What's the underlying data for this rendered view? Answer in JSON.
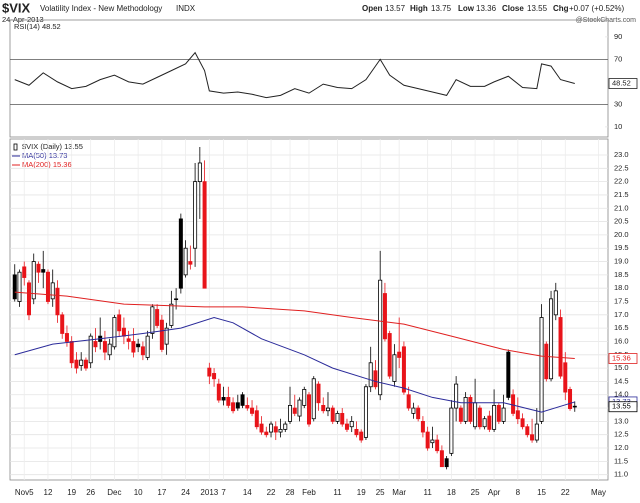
{
  "header": {
    "symbol": "$VIX",
    "name": "Volatility Index - New Methodology",
    "exchange": "INDX",
    "date": "24-Apr-2013",
    "open_label": "Open",
    "high_label": "High",
    "low_label": "Low",
    "close_label": "Close",
    "change_label": "Chg",
    "change": "+0.07 (+0.52%)",
    "watermark": "@StockCharts.com"
  },
  "chart_data": [
    {
      "type": "line",
      "xlim": [
        -1,
        125
      ],
      "ylim": [
        1,
        105
      ],
      "yticks": [
        10,
        30,
        70,
        90
      ],
      "levels": [
        30,
        70
      ],
      "grid": false,
      "series": [
        {
          "name": "RSI(14)",
          "color": "#222222",
          "x": [
            0,
            3,
            6,
            9,
            12,
            15,
            18,
            21,
            24,
            27,
            30,
            33,
            36,
            38,
            40,
            41,
            44,
            47,
            50,
            53,
            56,
            59,
            62,
            65,
            68,
            71,
            74,
            77,
            79,
            82,
            85,
            88,
            91,
            93,
            96,
            99,
            101,
            104,
            107,
            110,
            111,
            113,
            115,
            118
          ],
          "values": [
            52,
            47,
            58,
            50,
            44,
            46,
            52,
            56,
            50,
            48,
            54,
            60,
            66,
            76,
            60,
            42,
            40,
            41,
            39,
            36,
            38,
            44,
            40,
            48,
            45,
            44,
            52,
            70,
            56,
            47,
            44,
            41,
            38,
            52,
            46,
            46,
            50,
            55,
            45,
            44,
            66,
            64,
            52,
            48.52
          ]
        }
      ]
    },
    {
      "type": "candlestick",
      "name": "$VIX (Daily)",
      "up_color": "#000000",
      "down_color": "#e8141a",
      "grid": true,
      "xlim": [
        -1,
        125
      ],
      "ylim": [
        10.8,
        23.6
      ],
      "yticks": [
        {
          "value": 11,
          "label": "11.0"
        },
        11.5,
        {
          "value": 12,
          "label": "12.0"
        },
        12.5,
        {
          "value": 13,
          "label": "13.0"
        },
        13.5,
        {
          "value": 14,
          "label": "14.0"
        },
        14.5,
        {
          "value": 15,
          "label": "15.0"
        },
        15.5,
        {
          "value": 16,
          "label": "16.0"
        },
        16.5,
        {
          "value": 17,
          "label": "17.0"
        },
        17.5,
        {
          "value": 18,
          "label": "18.0"
        },
        18.5,
        {
          "value": 19,
          "label": "19.0"
        },
        19.5,
        {
          "value": 20,
          "label": "20.0"
        },
        20.5,
        {
          "value": 21,
          "label": "21.0"
        },
        21.5,
        {
          "value": 22,
          "label": "22.0"
        },
        22.5,
        {
          "value": 23,
          "label": "23.0"
        }
      ],
      "xticks": [
        {
          "value": 2,
          "label": "Nov5"
        },
        {
          "value": 7,
          "label": "12"
        },
        {
          "value": 12,
          "label": "19"
        },
        {
          "value": 16,
          "label": "26"
        },
        {
          "value": 21,
          "label": "Dec"
        },
        {
          "value": 26,
          "label": "10"
        },
        {
          "value": 31,
          "label": "17"
        },
        {
          "value": 36,
          "label": "24"
        },
        {
          "value": 41,
          "label": "2013"
        },
        {
          "value": 44,
          "label": "7"
        },
        {
          "value": 49,
          "label": "14"
        },
        {
          "value": 54,
          "label": "22"
        },
        {
          "value": 58,
          "label": "28"
        },
        {
          "value": 62,
          "label": "Feb"
        },
        {
          "value": 68,
          "label": "11"
        },
        {
          "value": 73,
          "label": "19"
        },
        {
          "value": 77,
          "label": "25"
        },
        {
          "value": 81,
          "label": "Mar"
        },
        {
          "value": 87,
          "label": "11"
        },
        {
          "value": 92,
          "label": "18"
        },
        {
          "value": 97,
          "label": "25"
        },
        {
          "value": 101,
          "label": "Apr"
        },
        {
          "value": 106,
          "label": "8"
        },
        {
          "value": 111,
          "label": "15"
        },
        {
          "value": 116,
          "label": "22"
        },
        {
          "value": 123,
          "label": "May"
        }
      ],
      "open": [
        18.5,
        17.5,
        18.8,
        18.2,
        17.6,
        18.9,
        18.7,
        18.6,
        17.6,
        18.0,
        17.0,
        16.3,
        16.0,
        15.3,
        15.1,
        15.3,
        15.2,
        16.0,
        16.2,
        16.0,
        15.5,
        15.8,
        17.0,
        16.5,
        16.1,
        16.0,
        15.9,
        15.8,
        15.4,
        16.3,
        17.2,
        16.8,
        15.9,
        16.6,
        17.6,
        20.6,
        18.5,
        19.0,
        19.5,
        22.0,
        22.0,
        15.0,
        14.8,
        14.4,
        13.9,
        13.9,
        13.7,
        13.7,
        14.0,
        13.6,
        13.5,
        13.4,
        12.9,
        12.6,
        12.6,
        12.8,
        12.6,
        12.7,
        13.0,
        13.5,
        13.2,
        13.6,
        14.0,
        13.1,
        14.4,
        13.6,
        13.4,
        13.5,
        13.0,
        13.3,
        12.9,
        12.8,
        12.7,
        12.6,
        12.4,
        14.3,
        14.9,
        14.0,
        17.8,
        16.3,
        14.5,
        15.6,
        15.8,
        14.0,
        13.3,
        13.5,
        13.0,
        12.6,
        12.2,
        12.3,
        11.9,
        11.6,
        11.8,
        13.5,
        13.5,
        13.0,
        13.9,
        12.8,
        13.5,
        12.8,
        13.2,
        12.7,
        13.6,
        13.0,
        15.6,
        14.0,
        13.4,
        13.1,
        12.8,
        12.5,
        12.3,
        13.0,
        15.9,
        14.6,
        17.0,
        16.9,
        15.2,
        14.2,
        13.57
      ],
      "high": [
        18.9,
        18.7,
        19.0,
        18.3,
        19.3,
        19.0,
        19.4,
        18.7,
        18.7,
        18.3,
        17.1,
        16.6,
        16.2,
        15.6,
        15.6,
        15.4,
        16.3,
        16.5,
        16.9,
        16.4,
        16.1,
        17.0,
        17.2,
        16.9,
        16.4,
        16.5,
        16.1,
        16.0,
        16.4,
        17.4,
        17.4,
        17.0,
        16.7,
        17.9,
        18.0,
        20.8,
        19.8,
        19.6,
        22.7,
        23.3,
        22.8,
        15.2,
        15.0,
        14.6,
        14.3,
        14.3,
        13.9,
        14.0,
        14.1,
        13.9,
        13.8,
        13.6,
        13.2,
        12.8,
        13.0,
        13.0,
        13.1,
        13.0,
        14.3,
        14.0,
        13.9,
        14.3,
        14.1,
        14.7,
        14.5,
        13.9,
        14.1,
        13.6,
        13.4,
        13.5,
        13.1,
        13.2,
        13.0,
        12.7,
        14.4,
        15.8,
        15.3,
        19.4,
        18.2,
        16.4,
        15.9,
        16.9,
        16.0,
        14.3,
        13.7,
        13.6,
        13.2,
        12.8,
        12.8,
        12.5,
        12.1,
        11.7,
        13.8,
        14.7,
        13.6,
        14.1,
        14.0,
        14.6,
        13.6,
        13.2,
        13.4,
        14.2,
        13.7,
        14.0,
        15.7,
        14.2,
        13.9,
        13.3,
        12.9,
        13.1,
        13.5,
        17.4,
        16.0,
        17.9,
        18.2,
        17.2,
        15.6,
        14.3,
        13.75
      ],
      "low": [
        17.5,
        17.3,
        18.1,
        16.8,
        17.4,
        18.2,
        18.0,
        17.4,
        17.3,
        16.7,
        16.1,
        15.8,
        15.0,
        14.8,
        14.9,
        14.9,
        15.0,
        15.6,
        15.7,
        15.3,
        15.3,
        15.7,
        16.2,
        15.9,
        15.7,
        15.4,
        15.6,
        15.3,
        15.3,
        16.1,
        16.5,
        15.6,
        15.5,
        16.5,
        17.2,
        17.8,
        18.4,
        18.7,
        18.8,
        20.6,
        18.0,
        14.4,
        14.3,
        13.7,
        13.6,
        13.5,
        13.3,
        13.4,
        13.5,
        13.4,
        13.2,
        12.7,
        12.5,
        12.4,
        12.4,
        12.3,
        12.4,
        12.6,
        12.9,
        13.2,
        13.0,
        13.5,
        12.8,
        13.0,
        13.4,
        13.3,
        13.2,
        12.9,
        12.9,
        12.8,
        12.6,
        12.6,
        12.4,
        12.2,
        12.3,
        14.1,
        14.2,
        13.8,
        16.0,
        14.6,
        14.3,
        15.0,
        14.0,
        13.4,
        13.1,
        13.0,
        12.4,
        11.9,
        12.0,
        11.8,
        11.3,
        11.2,
        11.7,
        13.0,
        12.9,
        12.9,
        12.9,
        12.7,
        12.7,
        12.7,
        12.6,
        12.6,
        12.9,
        12.9,
        13.8,
        13.2,
        12.9,
        12.7,
        12.4,
        12.2,
        12.2,
        12.9,
        14.5,
        14.5,
        16.8,
        14.6,
        13.8,
        13.4,
        13.36
      ],
      "close": [
        17.6,
        18.6,
        18.4,
        17.0,
        19.0,
        18.6,
        18.6,
        17.5,
        18.2,
        17.0,
        16.3,
        16.0,
        15.2,
        15.0,
        15.3,
        15.0,
        16.2,
        15.8,
        16.0,
        15.6,
        15.9,
        16.9,
        16.4,
        16.2,
        16.0,
        15.6,
        15.8,
        15.5,
        16.2,
        17.3,
        16.6,
        15.7,
        16.5,
        17.4,
        17.6,
        18.0,
        19.5,
        18.9,
        22.0,
        22.7,
        18.0,
        14.7,
        14.6,
        13.8,
        13.8,
        13.6,
        13.4,
        13.5,
        13.6,
        13.5,
        13.3,
        12.8,
        12.6,
        12.5,
        12.9,
        12.6,
        12.7,
        12.9,
        13.6,
        13.3,
        13.8,
        14.2,
        12.9,
        14.6,
        13.7,
        13.4,
        13.5,
        13.0,
        13.3,
        12.9,
        12.7,
        13.0,
        12.5,
        12.3,
        14.3,
        15.2,
        14.3,
        18.3,
        16.1,
        14.7,
        15.5,
        15.4,
        14.1,
        13.5,
        13.5,
        13.1,
        12.6,
        12.0,
        12.3,
        11.9,
        11.3,
        11.3,
        13.5,
        14.4,
        13.0,
        13.9,
        13.0,
        13.7,
        12.8,
        13.1,
        12.7,
        13.6,
        13.0,
        13.5,
        13.9,
        13.3,
        13.1,
        12.8,
        12.5,
        12.3,
        12.9,
        16.9,
        14.6,
        17.6,
        17.9,
        14.7,
        14.1,
        13.48,
        13.55
      ],
      "series": [
        {
          "name": "MA(50)",
          "color": "#2b2b9a",
          "x": [
            0,
            8,
            18,
            27,
            35,
            42,
            46,
            52,
            61,
            67,
            76,
            82,
            88,
            94,
            103,
            111,
            118
          ],
          "values": [
            15.5,
            15.9,
            16.1,
            16.3,
            16.5,
            16.9,
            16.7,
            16.1,
            15.5,
            15.0,
            14.5,
            14.25,
            13.9,
            13.7,
            13.7,
            13.35,
            13.73
          ]
        },
        {
          "name": "MA(200)",
          "color": "#e02020",
          "x": [
            0,
            11,
            23,
            40,
            48,
            61,
            71,
            82,
            92,
            103,
            111,
            118
          ],
          "values": [
            17.85,
            17.7,
            17.4,
            17.3,
            17.3,
            17.15,
            16.9,
            16.65,
            16.2,
            15.7,
            15.45,
            15.36
          ]
        }
      ]
    }
  ]
}
